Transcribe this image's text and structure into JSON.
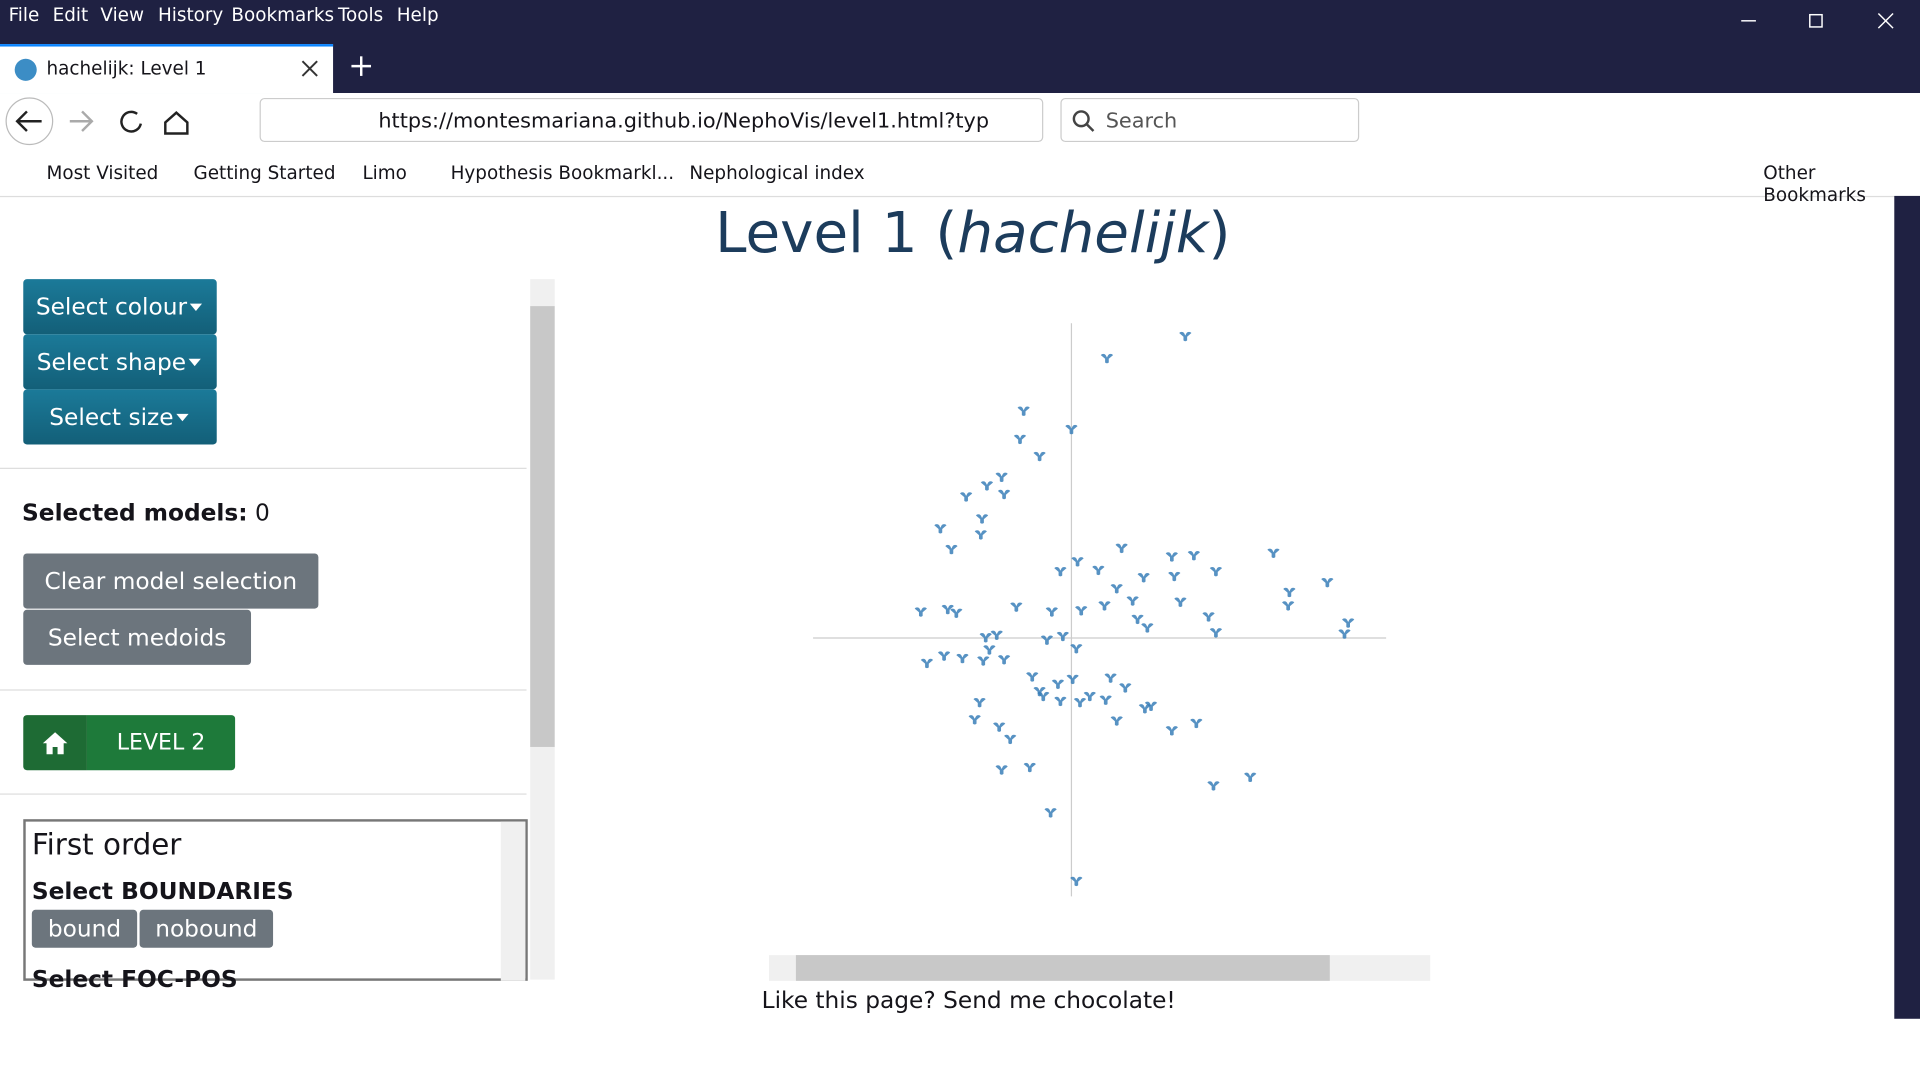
{
  "menu": [
    "File",
    "Edit",
    "View",
    "History",
    "Bookmarks",
    "Tools",
    "Help"
  ],
  "tab": {
    "title": "hachelijk: Level 1"
  },
  "url": "https://montesmariana.github.io/NephoVis/level1.html?typ",
  "search": "Search",
  "bookmarks": [
    "Most Visited",
    "Getting Started",
    "Limo",
    "Hypothesis Bookmarkl...",
    "Nephological index"
  ],
  "other_bookmarks": "Other Bookmarks",
  "page": {
    "title_prefix": "Level 1 (",
    "title_word": "hachelijk",
    "title_suffix": ")",
    "dropdowns": [
      "Select colour",
      "Select shape",
      "Select size"
    ],
    "selected_label": "Selected models:",
    "selected_count": "0",
    "clear_button": "Clear model selection",
    "medoids_button": "Select medoids",
    "level_button": "LEVEL 2",
    "panel": {
      "heading": "First order",
      "group1": "Select BOUNDARIES",
      "options": [
        "bound",
        "nobound"
      ],
      "group2": "Select FOC-POS"
    },
    "footer": "Like this page? Send me chocolate!"
  },
  "plot": {
    "x": [
      93,
      29,
      -39,
      0,
      -42,
      -26,
      -57,
      -69,
      -86,
      -55,
      -73,
      -107,
      -74,
      -98,
      41,
      5,
      -9,
      22,
      82,
      100,
      118,
      59,
      84,
      165,
      209,
      178,
      177,
      37,
      50,
      27,
      89,
      8,
      54,
      62,
      112,
      118,
      -123,
      -101,
      -94,
      -45,
      -16,
      226,
      223,
      -70,
      -61,
      -20,
      -7,
      4,
      -118,
      -104,
      -89,
      -72,
      -55,
      -32,
      -23,
      -11,
      1,
      15,
      32,
      44,
      60,
      -75,
      -79,
      -59,
      -50,
      37,
      82,
      102,
      -57,
      -34,
      116,
      146,
      -17,
      4,
      7,
      -9,
      -26,
      28,
      65,
      -67
    ],
    "y": [
      245,
      227,
      184,
      169,
      161,
      147,
      130,
      123,
      114,
      116,
      96,
      88,
      83,
      71,
      72,
      61,
      53,
      54,
      65,
      66,
      53,
      48,
      49,
      68,
      44,
      36,
      25,
      39,
      29,
      25,
      28,
      21,
      14,
      7,
      16,
      3,
      20,
      22,
      19,
      24,
      20,
      11,
      2,
      -1,
      1,
      -3,
      0,
      -10,
      -22,
      -16,
      -18,
      -20,
      -19,
      -33,
      -49,
      -39,
      -35,
      -49,
      -34,
      -42,
      -59,
      -54,
      -68,
      -74,
      -84,
      -69,
      -77,
      -71,
      -109,
      -107,
      -122,
      -115,
      -144,
      -200,
      -54,
      -53,
      -45,
      -52,
      -57,
      -11
    ]
  }
}
